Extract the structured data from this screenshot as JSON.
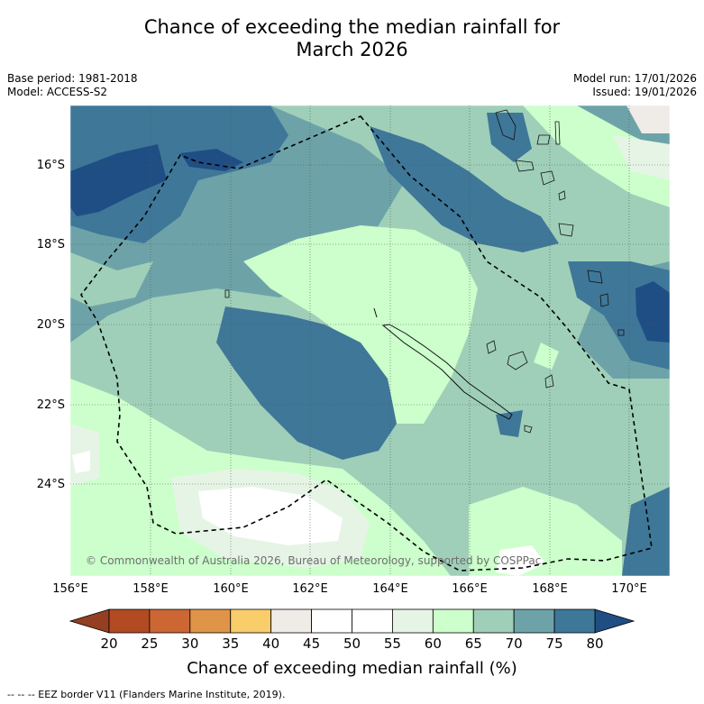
{
  "title_line1": "Chance of exceeding the median rainfall for",
  "title_line2": "March 2026",
  "base_period": "Base period: 1981-2018",
  "model": "Model: ACCESS-S2",
  "model_run": "Model run: 17/01/2026",
  "issued": "Issued: 19/01/2026",
  "lat_labels": [
    "16°S",
    "18°S",
    "20°S",
    "22°S",
    "24°S"
  ],
  "lon_labels": [
    "156°E",
    "158°E",
    "160°E",
    "162°E",
    "164°E",
    "166°E",
    "168°E",
    "170°E"
  ],
  "copyright": "© Commonwealth of Australia 2026, Bureau of Meteorology, supported by COSPPac",
  "colorbar": {
    "ticks": [
      "20",
      "25",
      "30",
      "35",
      "40",
      "45",
      "50",
      "55",
      "60",
      "65",
      "70",
      "75",
      "80"
    ],
    "colors": [
      "#b24a22",
      "#cc6633",
      "#e09447",
      "#f8cd6a",
      "#efebe7",
      "#ffffff",
      "#ffffff",
      "#e6f4e6",
      "#ccffcc",
      "#9fcfb8",
      "#6da3a8",
      "#3f7799"
    ],
    "low_color": "#943f22",
    "high_color": "#1f4e84",
    "title": "Chance of exceeding median rainfall (%)"
  },
  "footnote": "-- -- -- EEZ border V11 (Flanders Marine Institute, 2019)."
}
